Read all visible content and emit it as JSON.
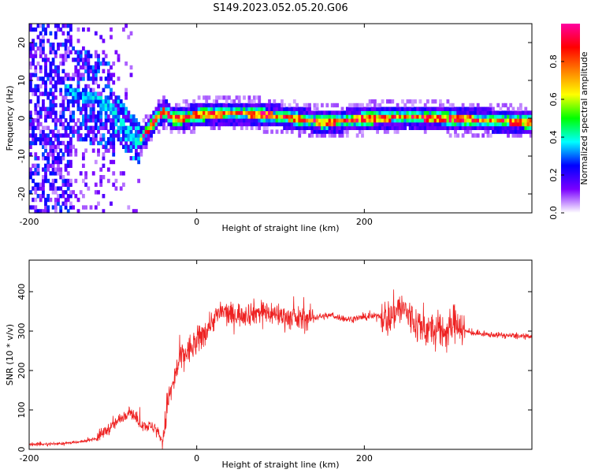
{
  "figure": {
    "title": "S149.2023.052.05.20.G06"
  },
  "chart_data": [
    {
      "type": "heatmap",
      "xlabel": "Height of straight line (km)",
      "ylabel": "Frequency (Hz)",
      "xlim": [
        -200,
        400
      ],
      "ylim": [
        -25,
        25
      ],
      "xticks": [
        -200,
        0,
        200
      ],
      "yticks": [
        -20,
        -10,
        0,
        10,
        20
      ],
      "colorbar": {
        "label": "Normalized spectral amplitude",
        "range": [
          0,
          1
        ],
        "ticks": [
          0.0,
          0.2,
          0.4,
          0.6,
          0.8
        ],
        "tick_labels": [
          "0.0",
          "0.2",
          "0.4",
          "0.6",
          "0.8"
        ],
        "colormap": [
          "#ffffff",
          "#7a00ff",
          "#0000ff",
          "#00ffff",
          "#00ff00",
          "#ffff00",
          "#ff8000",
          "#ff0000",
          "#ff00a0"
        ]
      },
      "ridge": {
        "x": [
          -160,
          -140,
          -120,
          -100,
          -90,
          -80,
          -70,
          -60,
          -50,
          -40,
          -30,
          -20,
          0,
          50,
          100,
          150,
          200,
          250,
          300,
          350,
          400
        ],
        "y": [
          8,
          6,
          5,
          2,
          -2,
          -5,
          -6,
          -3,
          0,
          2,
          0,
          0,
          1,
          1.5,
          0.5,
          -1,
          0,
          0.5,
          0,
          -0.5,
          -1
        ]
      },
      "grid": false
    },
    {
      "type": "line",
      "xlabel": "Height of straight line (km)",
      "ylabel": "SNR (10 * v/v)",
      "xlim": [
        -200,
        400
      ],
      "ylim": [
        0,
        480
      ],
      "xticks": [
        -200,
        0,
        200
      ],
      "yticks": [
        0,
        100,
        200,
        300,
        400
      ],
      "series": [
        {
          "color": "#ee2222",
          "x": [
            -200,
            -180,
            -160,
            -140,
            -120,
            -110,
            -100,
            -90,
            -80,
            -70,
            -60,
            -50,
            -40,
            -35,
            -30,
            -20,
            -10,
            0,
            10,
            20,
            30,
            40,
            60,
            80,
            100,
            120,
            140,
            160,
            180,
            200,
            220,
            230,
            240,
            250,
            260,
            280,
            300,
            310,
            320,
            330,
            340,
            360,
            380,
            400
          ],
          "y": [
            12,
            13,
            15,
            18,
            28,
            45,
            60,
            80,
            100,
            70,
            60,
            55,
            20,
            120,
            150,
            230,
            250,
            270,
            300,
            330,
            350,
            340,
            345,
            350,
            340,
            330,
            335,
            340,
            330,
            335,
            340,
            330,
            360,
            350,
            320,
            300,
            300,
            330,
            300,
            295,
            292,
            290,
            288,
            285
          ]
        }
      ],
      "grid": false
    }
  ]
}
